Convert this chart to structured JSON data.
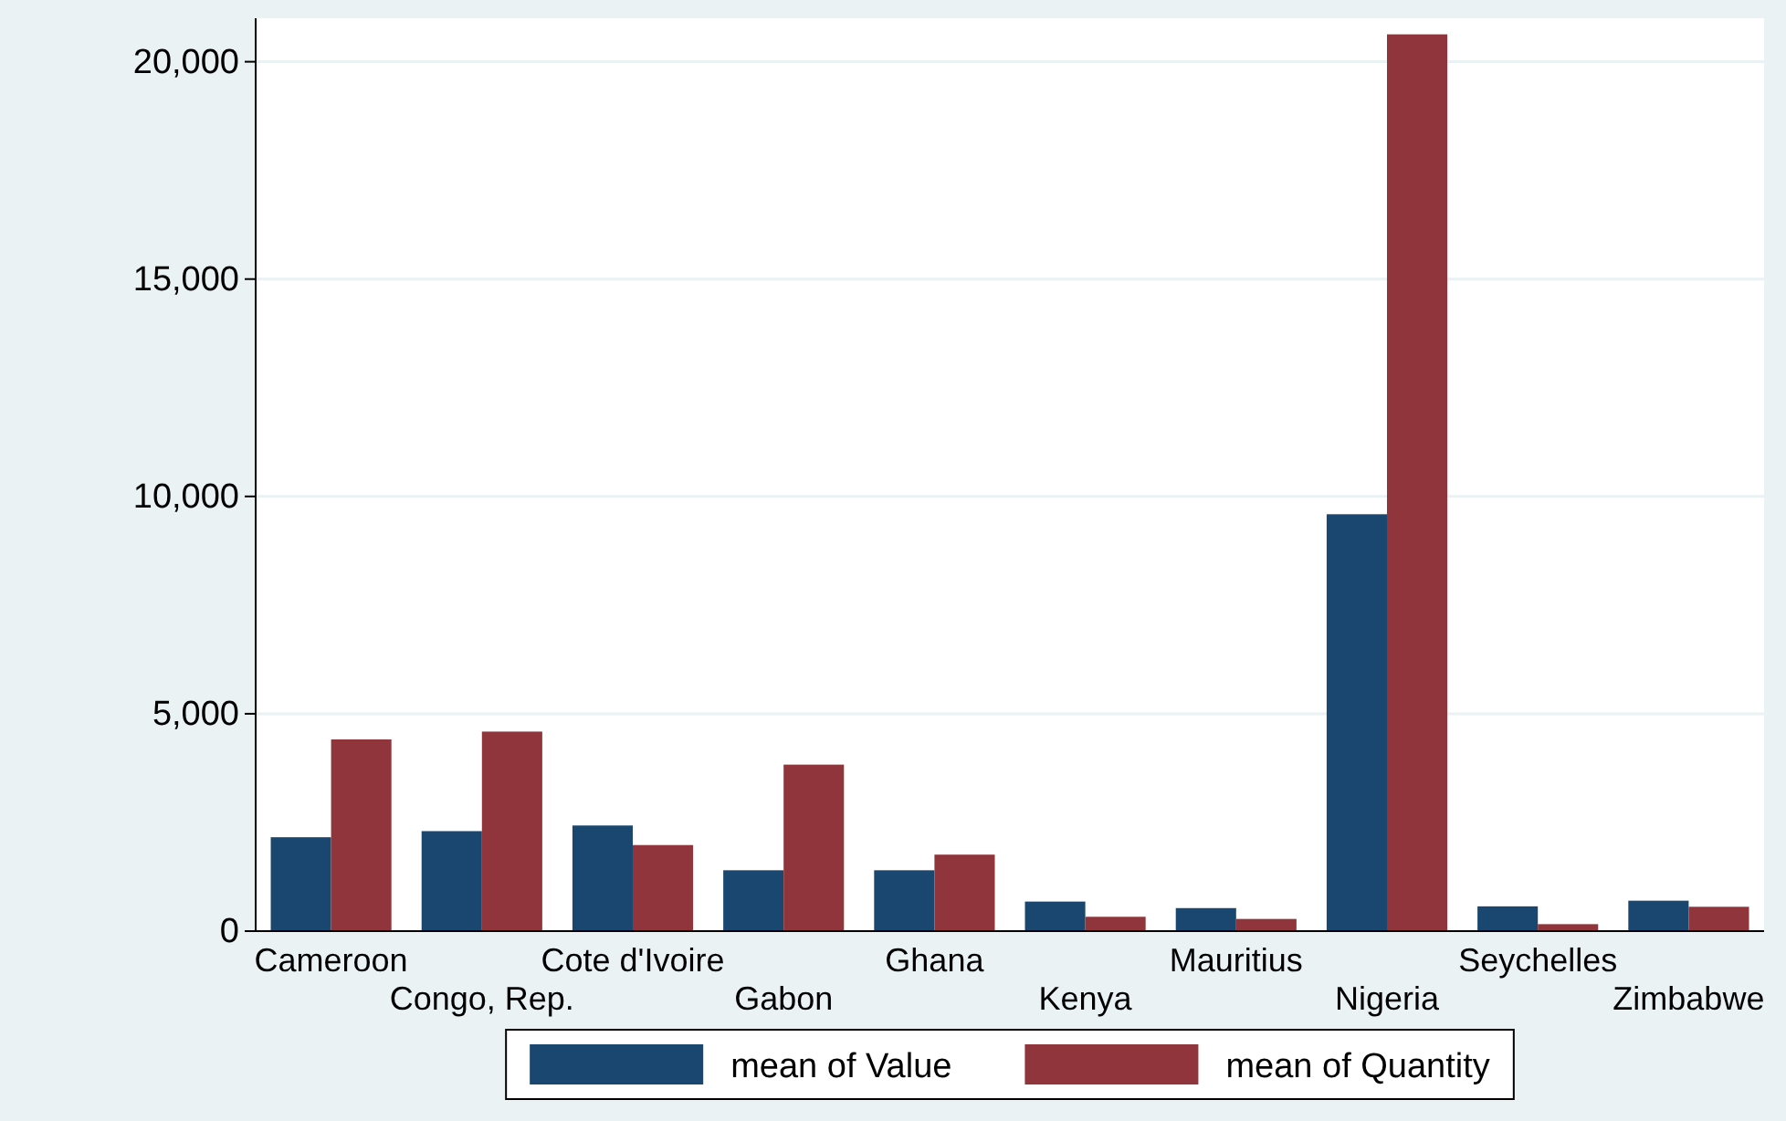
{
  "chart_data": {
    "type": "bar",
    "categories": [
      "Cameroon",
      "Congo, Rep.",
      "Cote d'Ivoire",
      "Gabon",
      "Ghana",
      "Kenya",
      "Mauritius",
      "Nigeria",
      "Seychelles",
      "Zimbabwe"
    ],
    "series": [
      {
        "name": "mean of Value",
        "color": "#1a476f",
        "values": [
          2160,
          2300,
          2430,
          1400,
          1400,
          680,
          530,
          9590,
          570,
          700
        ]
      },
      {
        "name": "mean of Quantity",
        "color": "#90353b",
        "values": [
          4410,
          4590,
          1980,
          3830,
          1760,
          330,
          280,
          20630,
          160,
          560
        ]
      }
    ],
    "ylim": [
      0,
      21000
    ],
    "yticks": [
      {
        "value": 0,
        "label": "0"
      },
      {
        "value": 5000,
        "label": "5,000"
      },
      {
        "value": 10000,
        "label": "10,000"
      },
      {
        "value": 15000,
        "label": "15,000"
      },
      {
        "value": 20000,
        "label": "20,000"
      }
    ],
    "grid": "y",
    "legend": "bottom"
  }
}
